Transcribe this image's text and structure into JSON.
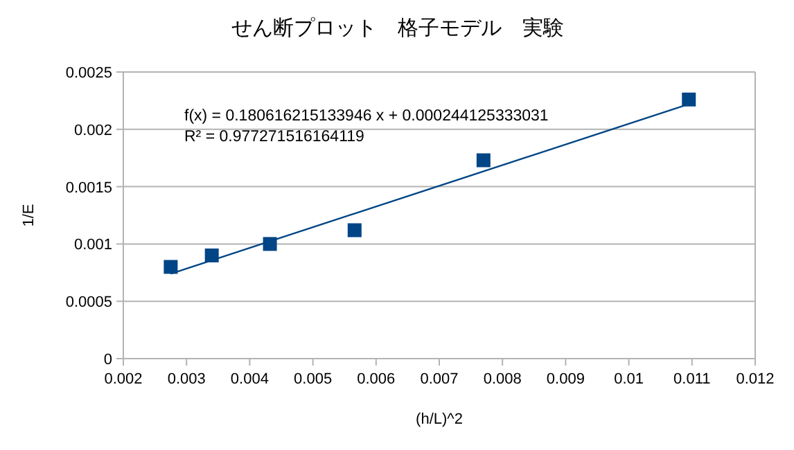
{
  "chart_data": {
    "type": "scatter",
    "title": "せん断プロット　格子モデル　実験",
    "xlabel": "(h/L)^2",
    "ylabel": "1/E",
    "annotations": [
      "f(x) = 0.180616215133946 x + 0.000244125333031",
      "R² = 0.977271516164119"
    ],
    "series": [
      {
        "color": "#004586",
        "marker": "square",
        "x": [
          0.00275,
          0.0034,
          0.00432,
          0.00566,
          0.0077,
          0.01095
        ],
        "values": [
          0.0008,
          0.0009,
          0.001,
          0.00112,
          0.00173,
          0.00226
        ]
      },
      {
        "type": "line",
        "color": "#004586",
        "marker": "none",
        "x": [
          0.00275,
          0.01095
        ],
        "values": [
          0.00074,
          0.00222
        ]
      }
    ],
    "xlim": [
      0.002,
      0.012
    ],
    "xticks": [
      0.002,
      0.003,
      0.004,
      0.005,
      0.006,
      0.007,
      0.008,
      0.009,
      0.01,
      0.011,
      0.012
    ],
    "ylim": [
      0,
      0.0025
    ],
    "yticks": [
      0,
      0.0005,
      0.001,
      0.0015,
      0.002,
      0.0025
    ],
    "grid": "y"
  }
}
